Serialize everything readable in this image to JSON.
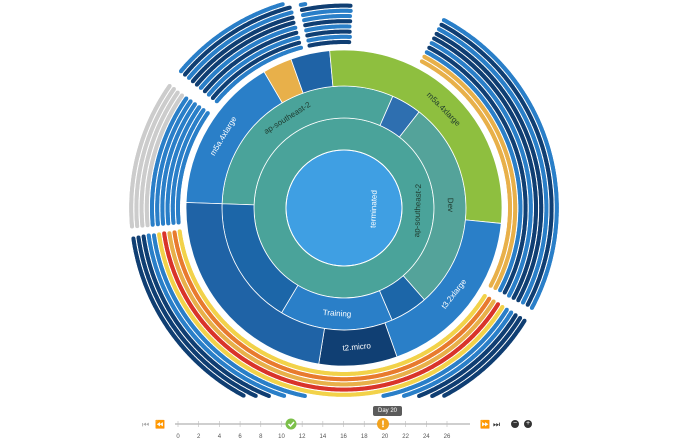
{
  "chart_data": {
    "type": "sunburst",
    "title": "",
    "rings": [
      {
        "level": 1,
        "segments": [
          {
            "label": "terminated",
            "value": 100,
            "color": "#3f9fe3"
          }
        ]
      },
      {
        "level": 2,
        "segments": [
          {
            "label": "ap-southeast-2",
            "value": 100,
            "color": "#4aa39a"
          }
        ]
      },
      {
        "level": 3,
        "segments": [
          {
            "label": "ap-southeast-2",
            "value": 31,
            "color": "#4aa39a"
          },
          {
            "label": "",
            "value": 4,
            "color": "#2e6fb0"
          },
          {
            "label": "Dev",
            "value": 28,
            "color": "#54a39a"
          },
          {
            "label": "",
            "value": 5,
            "color": "#1c66a8"
          },
          {
            "label": "Training",
            "value": 15,
            "color": "#2a7fc8"
          },
          {
            "label": "",
            "value": 17,
            "color": "#1c66a8"
          }
        ]
      },
      {
        "level": 4,
        "segments": [
          {
            "label": "m5a.4xlarge",
            "value": 16,
            "color": "#2a7fc8"
          },
          {
            "label": "",
            "value": 3,
            "color": "#e8b04a"
          },
          {
            "label": "",
            "value": 4,
            "color": "#1f63a6"
          },
          {
            "label": "m5a.4xlarge",
            "value": 28,
            "color": "#8ebf3f"
          },
          {
            "label": "t3.2xlarge",
            "value": 18,
            "color": "#2a7fc8"
          },
          {
            "label": "t2.micro",
            "value": 8,
            "color": "#103f73"
          },
          {
            "label": "",
            "value": 23,
            "color": "#1f63a6"
          }
        ]
      }
    ],
    "dot_sectors": [
      {
        "color": "#103f73",
        "count": 80
      },
      {
        "color": "#2a7fc8",
        "count": 60
      },
      {
        "color": "#e8b04a",
        "count": 25
      },
      {
        "color": "#d9342b",
        "count": 20
      },
      {
        "color": "#999999",
        "count": 30
      }
    ],
    "timeline": {
      "ticks": [
        "0",
        "2",
        "4",
        "6",
        "8",
        "10",
        "12",
        "14",
        "16",
        "18",
        "20",
        "22",
        "24",
        "26"
      ],
      "current": 20,
      "current_label": "Day 20",
      "marker_ok": 10,
      "marker_warn": 20
    }
  }
}
